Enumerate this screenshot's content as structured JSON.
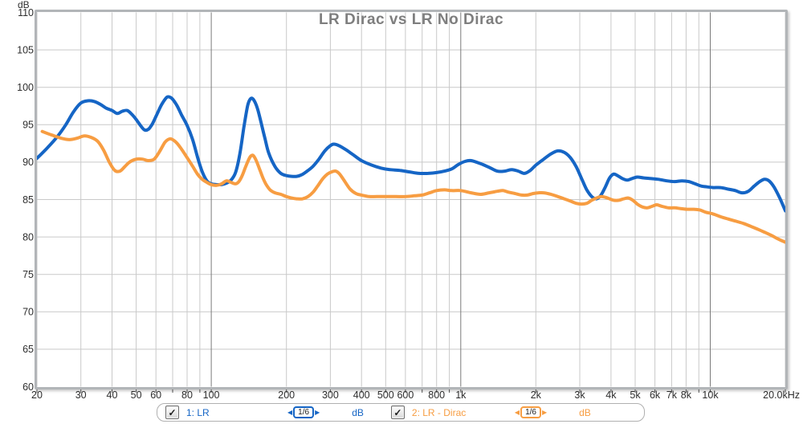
{
  "chart_data": {
    "type": "line",
    "title": "LR Dirac vs LR No Dirac",
    "grid": true,
    "legend_position": "bottom",
    "x_axis": {
      "scale": "log",
      "unit": "Hz",
      "min": 20,
      "max": 20000,
      "ticks": [
        {
          "f": 20,
          "label": "20",
          "major": false
        },
        {
          "f": 30,
          "label": "30",
          "major": false
        },
        {
          "f": 40,
          "label": "40",
          "major": false
        },
        {
          "f": 50,
          "label": "50",
          "major": false
        },
        {
          "f": 60,
          "label": "60",
          "major": false
        },
        {
          "f": 70,
          "label": "",
          "major": false
        },
        {
          "f": 80,
          "label": "80",
          "major": false
        },
        {
          "f": 90,
          "label": "",
          "major": false
        },
        {
          "f": 100,
          "label": "100",
          "major": true
        },
        {
          "f": 200,
          "label": "200",
          "major": false
        },
        {
          "f": 300,
          "label": "300",
          "major": false
        },
        {
          "f": 400,
          "label": "400",
          "major": false
        },
        {
          "f": 500,
          "label": "500",
          "major": false
        },
        {
          "f": 600,
          "label": "600",
          "major": false
        },
        {
          "f": 700,
          "label": "",
          "major": false
        },
        {
          "f": 800,
          "label": "800",
          "major": false
        },
        {
          "f": 900,
          "label": "",
          "major": false
        },
        {
          "f": 1000,
          "label": "1k",
          "major": true
        },
        {
          "f": 2000,
          "label": "2k",
          "major": false
        },
        {
          "f": 3000,
          "label": "3k",
          "major": false
        },
        {
          "f": 4000,
          "label": "4k",
          "major": false
        },
        {
          "f": 5000,
          "label": "5k",
          "major": false
        },
        {
          "f": 6000,
          "label": "6k",
          "major": false
        },
        {
          "f": 7000,
          "label": "7k",
          "major": false
        },
        {
          "f": 8000,
          "label": "8k",
          "major": false
        },
        {
          "f": 9000,
          "label": "",
          "major": false
        },
        {
          "f": 10000,
          "label": "10k",
          "major": true
        },
        {
          "f": 20000,
          "label": "20.0kHz",
          "major": false
        }
      ]
    },
    "y_axis": {
      "unit": "dB",
      "min": 60,
      "max": 110,
      "step": 5,
      "ticks": [
        110,
        105,
        100,
        95,
        90,
        85,
        80,
        75,
        70,
        65,
        60
      ]
    },
    "series": [
      {
        "name": "1: LR",
        "color": "#1565c5",
        "smoothing": "1/6",
        "unit": "dB",
        "checked": true,
        "points": [
          [
            20,
            90.5
          ],
          [
            22,
            91.9
          ],
          [
            24,
            93.3
          ],
          [
            26,
            94.9
          ],
          [
            28,
            96.7
          ],
          [
            30,
            97.9
          ],
          [
            32,
            98.2
          ],
          [
            34,
            98.1
          ],
          [
            36,
            97.7
          ],
          [
            38,
            97.2
          ],
          [
            40,
            96.9
          ],
          [
            42,
            96.5
          ],
          [
            44,
            96.8
          ],
          [
            46,
            96.9
          ],
          [
            48,
            96.4
          ],
          [
            50,
            95.7
          ],
          [
            52,
            94.9
          ],
          [
            54,
            94.3
          ],
          [
            56,
            94.4
          ],
          [
            58,
            95.1
          ],
          [
            60,
            96.1
          ],
          [
            63,
            97.6
          ],
          [
            66,
            98.6
          ],
          [
            68,
            98.7
          ],
          [
            70,
            98.4
          ],
          [
            73,
            97.5
          ],
          [
            76,
            96.3
          ],
          [
            80,
            94.9
          ],
          [
            84,
            93.1
          ],
          [
            88,
            90.7
          ],
          [
            92,
            88.7
          ],
          [
            96,
            87.5
          ],
          [
            100,
            87.1
          ],
          [
            105,
            87.0
          ],
          [
            110,
            87.0
          ],
          [
            115,
            87.2
          ],
          [
            120,
            87.6
          ],
          [
            125,
            88.6
          ],
          [
            130,
            91.0
          ],
          [
            135,
            94.6
          ],
          [
            140,
            97.6
          ],
          [
            144,
            98.5
          ],
          [
            148,
            98.3
          ],
          [
            153,
            97.2
          ],
          [
            158,
            95.4
          ],
          [
            164,
            93.2
          ],
          [
            170,
            91.2
          ],
          [
            180,
            89.4
          ],
          [
            190,
            88.5
          ],
          [
            200,
            88.2
          ],
          [
            210,
            88.1
          ],
          [
            220,
            88.1
          ],
          [
            230,
            88.3
          ],
          [
            240,
            88.7
          ],
          [
            255,
            89.4
          ],
          [
            270,
            90.4
          ],
          [
            285,
            91.5
          ],
          [
            300,
            92.2
          ],
          [
            310,
            92.4
          ],
          [
            325,
            92.2
          ],
          [
            345,
            91.7
          ],
          [
            370,
            91.0
          ],
          [
            400,
            90.2
          ],
          [
            440,
            89.6
          ],
          [
            480,
            89.2
          ],
          [
            520,
            89.0
          ],
          [
            570,
            88.9
          ],
          [
            620,
            88.7
          ],
          [
            680,
            88.5
          ],
          [
            740,
            88.5
          ],
          [
            800,
            88.6
          ],
          [
            860,
            88.8
          ],
          [
            920,
            89.1
          ],
          [
            980,
            89.7
          ],
          [
            1040,
            90.1
          ],
          [
            1100,
            90.2
          ],
          [
            1200,
            89.8
          ],
          [
            1300,
            89.3
          ],
          [
            1400,
            88.8
          ],
          [
            1500,
            88.8
          ],
          [
            1600,
            89.0
          ],
          [
            1700,
            88.8
          ],
          [
            1800,
            88.5
          ],
          [
            1900,
            88.9
          ],
          [
            2000,
            89.6
          ],
          [
            2150,
            90.4
          ],
          [
            2300,
            91.1
          ],
          [
            2450,
            91.5
          ],
          [
            2600,
            91.3
          ],
          [
            2750,
            90.6
          ],
          [
            2900,
            89.4
          ],
          [
            3050,
            87.8
          ],
          [
            3200,
            86.3
          ],
          [
            3350,
            85.4
          ],
          [
            3500,
            85.1
          ],
          [
            3650,
            85.6
          ],
          [
            3800,
            86.7
          ],
          [
            3950,
            87.9
          ],
          [
            4100,
            88.4
          ],
          [
            4250,
            88.2
          ],
          [
            4450,
            87.8
          ],
          [
            4650,
            87.6
          ],
          [
            4850,
            87.8
          ],
          [
            5100,
            88.0
          ],
          [
            5400,
            87.9
          ],
          [
            5800,
            87.8
          ],
          [
            6200,
            87.7
          ],
          [
            6700,
            87.5
          ],
          [
            7200,
            87.4
          ],
          [
            7700,
            87.5
          ],
          [
            8200,
            87.4
          ],
          [
            8700,
            87.1
          ],
          [
            9200,
            86.8
          ],
          [
            9700,
            86.7
          ],
          [
            10300,
            86.6
          ],
          [
            11000,
            86.6
          ],
          [
            11800,
            86.4
          ],
          [
            12600,
            86.2
          ],
          [
            13400,
            85.9
          ],
          [
            14200,
            86.1
          ],
          [
            15000,
            86.8
          ],
          [
            15800,
            87.4
          ],
          [
            16500,
            87.7
          ],
          [
            17200,
            87.5
          ],
          [
            18000,
            86.7
          ],
          [
            19000,
            85.2
          ],
          [
            20000,
            83.5
          ]
        ]
      },
      {
        "name": "2: LR - Dirac",
        "color": "#f79d42",
        "smoothing": "1/6",
        "unit": "dB",
        "checked": true,
        "points": [
          [
            21,
            94.1
          ],
          [
            23,
            93.6
          ],
          [
            25,
            93.2
          ],
          [
            27,
            93.0
          ],
          [
            29,
            93.2
          ],
          [
            31,
            93.5
          ],
          [
            33,
            93.3
          ],
          [
            35,
            92.8
          ],
          [
            37,
            91.6
          ],
          [
            39,
            90.0
          ],
          [
            41,
            88.9
          ],
          [
            43,
            88.8
          ],
          [
            45,
            89.4
          ],
          [
            47,
            90.0
          ],
          [
            50,
            90.4
          ],
          [
            53,
            90.4
          ],
          [
            56,
            90.2
          ],
          [
            59,
            90.4
          ],
          [
            62,
            91.4
          ],
          [
            65,
            92.6
          ],
          [
            67,
            93.0
          ],
          [
            69,
            93.1
          ],
          [
            72,
            92.7
          ],
          [
            75,
            92.0
          ],
          [
            80,
            90.6
          ],
          [
            84,
            89.5
          ],
          [
            88,
            88.4
          ],
          [
            92,
            87.7
          ],
          [
            96,
            87.3
          ],
          [
            100,
            87.0
          ],
          [
            105,
            86.9
          ],
          [
            110,
            87.1
          ],
          [
            115,
            87.5
          ],
          [
            120,
            87.3
          ],
          [
            125,
            87.1
          ],
          [
            129,
            87.4
          ],
          [
            133,
            88.2
          ],
          [
            137,
            89.3
          ],
          [
            141,
            90.3
          ],
          [
            144,
            90.8
          ],
          [
            147,
            90.9
          ],
          [
            151,
            90.3
          ],
          [
            156,
            89.1
          ],
          [
            161,
            87.9
          ],
          [
            166,
            87.0
          ],
          [
            172,
            86.3
          ],
          [
            180,
            85.9
          ],
          [
            190,
            85.7
          ],
          [
            200,
            85.4
          ],
          [
            210,
            85.2
          ],
          [
            220,
            85.1
          ],
          [
            232,
            85.1
          ],
          [
            244,
            85.4
          ],
          [
            256,
            86.0
          ],
          [
            268,
            86.9
          ],
          [
            280,
            87.8
          ],
          [
            292,
            88.4
          ],
          [
            304,
            88.7
          ],
          [
            315,
            88.8
          ],
          [
            327,
            88.4
          ],
          [
            340,
            87.6
          ],
          [
            360,
            86.4
          ],
          [
            380,
            85.8
          ],
          [
            400,
            85.6
          ],
          [
            430,
            85.4
          ],
          [
            460,
            85.4
          ],
          [
            500,
            85.4
          ],
          [
            550,
            85.4
          ],
          [
            600,
            85.4
          ],
          [
            650,
            85.5
          ],
          [
            700,
            85.6
          ],
          [
            750,
            85.9
          ],
          [
            800,
            86.2
          ],
          [
            860,
            86.3
          ],
          [
            920,
            86.2
          ],
          [
            1000,
            86.2
          ],
          [
            1100,
            85.9
          ],
          [
            1200,
            85.7
          ],
          [
            1300,
            85.9
          ],
          [
            1400,
            86.1
          ],
          [
            1475,
            86.2
          ],
          [
            1550,
            86.0
          ],
          [
            1650,
            85.8
          ],
          [
            1750,
            85.6
          ],
          [
            1850,
            85.6
          ],
          [
            1950,
            85.8
          ],
          [
            2050,
            85.9
          ],
          [
            2150,
            85.9
          ],
          [
            2300,
            85.7
          ],
          [
            2450,
            85.4
          ],
          [
            2600,
            85.1
          ],
          [
            2750,
            84.8
          ],
          [
            2900,
            84.5
          ],
          [
            3050,
            84.4
          ],
          [
            3200,
            84.5
          ],
          [
            3350,
            84.9
          ],
          [
            3500,
            85.2
          ],
          [
            3650,
            85.4
          ],
          [
            3800,
            85.3
          ],
          [
            3950,
            85.1
          ],
          [
            4100,
            84.9
          ],
          [
            4300,
            84.9
          ],
          [
            4500,
            85.1
          ],
          [
            4700,
            85.2
          ],
          [
            4900,
            84.9
          ],
          [
            5100,
            84.4
          ],
          [
            5350,
            84.0
          ],
          [
            5600,
            83.9
          ],
          [
            5850,
            84.1
          ],
          [
            6100,
            84.3
          ],
          [
            6400,
            84.1
          ],
          [
            6800,
            83.9
          ],
          [
            7200,
            83.9
          ],
          [
            7600,
            83.8
          ],
          [
            8100,
            83.7
          ],
          [
            8600,
            83.7
          ],
          [
            9100,
            83.6
          ],
          [
            9600,
            83.3
          ],
          [
            10200,
            83.1
          ],
          [
            11000,
            82.7
          ],
          [
            11800,
            82.4
          ],
          [
            12700,
            82.1
          ],
          [
            13600,
            81.8
          ],
          [
            14600,
            81.4
          ],
          [
            15600,
            81.0
          ],
          [
            16600,
            80.6
          ],
          [
            17600,
            80.2
          ],
          [
            18800,
            79.7
          ],
          [
            20000,
            79.3
          ]
        ]
      }
    ],
    "colors": {
      "grid_minor": "#c9c9c9",
      "grid_major": "#7a7a7a",
      "frame": "#b2b5b8",
      "tick_text": "#2e2e2e",
      "title_text": "#7e7e7e"
    }
  },
  "legend": {
    "checkbox_glyph": "✓",
    "left_arrow": "◀",
    "right_arrow": "▶"
  }
}
